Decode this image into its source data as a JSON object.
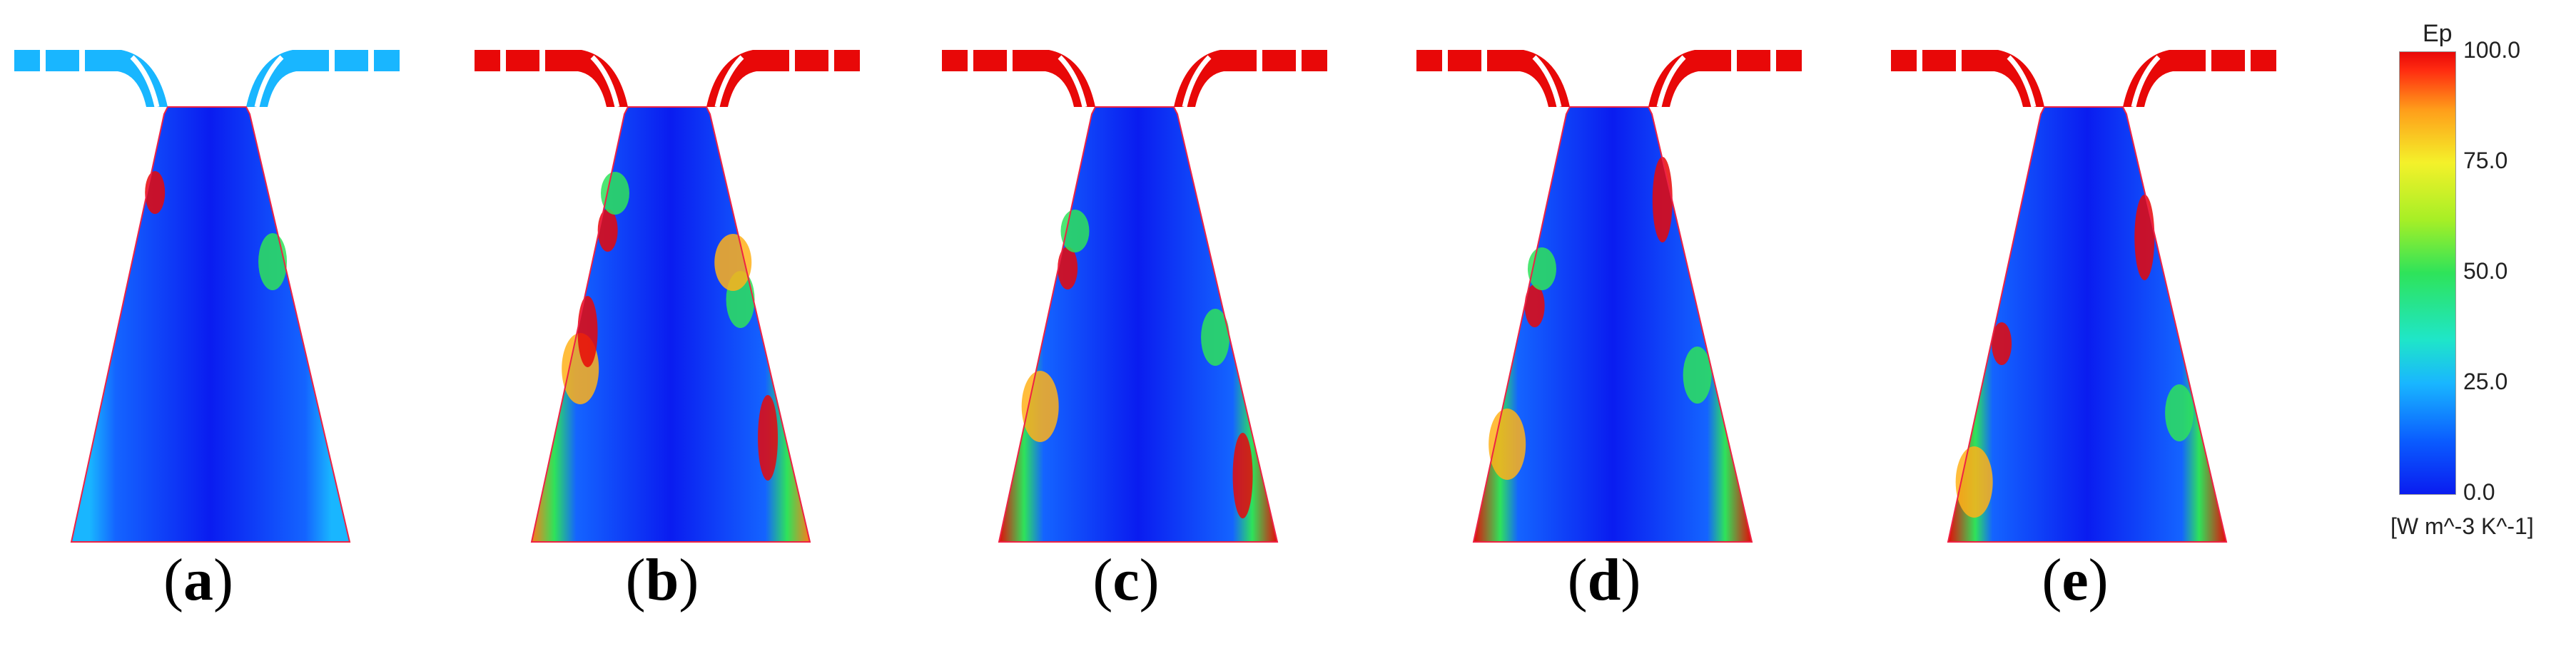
{
  "colorbar": {
    "title": "Ep",
    "ticks": [
      "100.0",
      "75.0",
      "50.0",
      "25.0",
      "0.0"
    ],
    "unit": "[W m^-3 K^-1]",
    "range": [
      0,
      100
    ],
    "colors": {
      "low": "#0a1cf0",
      "mid": "#2ee35a",
      "high": "#e80808"
    }
  },
  "panels": [
    {
      "label": "a",
      "edge_level": 0.15,
      "hot_streaks": 0.2
    },
    {
      "label": "b",
      "edge_level": 0.55,
      "hot_streaks": 0.7
    },
    {
      "label": "c",
      "edge_level": 0.75,
      "hot_streaks": 0.5
    },
    {
      "label": "d",
      "edge_level": 0.9,
      "hot_streaks": 0.45
    },
    {
      "label": "e",
      "edge_level": 0.95,
      "hot_streaks": 0.4
    }
  ]
}
